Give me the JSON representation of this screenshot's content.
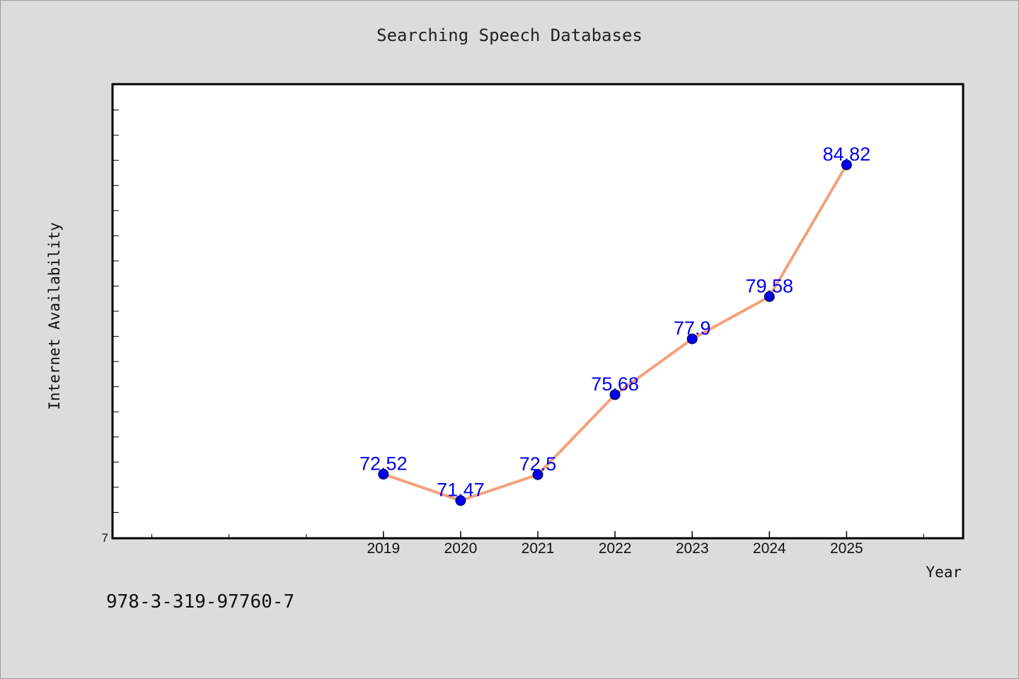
{
  "chart_data": {
    "type": "line",
    "title": "Searching Speech Databases",
    "xlabel": "Year",
    "ylabel": "Internet Availability",
    "x": [
      "2019",
      "2020",
      "2021",
      "2022",
      "2023",
      "2024",
      "2025"
    ],
    "values": [
      72.52,
      71.47,
      72.5,
      75.68,
      77.9,
      79.58,
      84.82
    ],
    "data_labels": [
      "72.52",
      "71.47",
      "72.5",
      "75.68",
      "77.9",
      "79.58",
      "84.82"
    ],
    "y_tick_labels": [
      "7"
    ],
    "ylim": [
      70,
      88
    ],
    "xlim": [
      2015.5,
      2026.5
    ],
    "grid": false,
    "legend": "none",
    "line_color": "#f5a07a",
    "marker_color": "#0000ee",
    "label_color": "#0000ee"
  },
  "footer": {
    "isbn": "978-3-319-97760-7"
  }
}
